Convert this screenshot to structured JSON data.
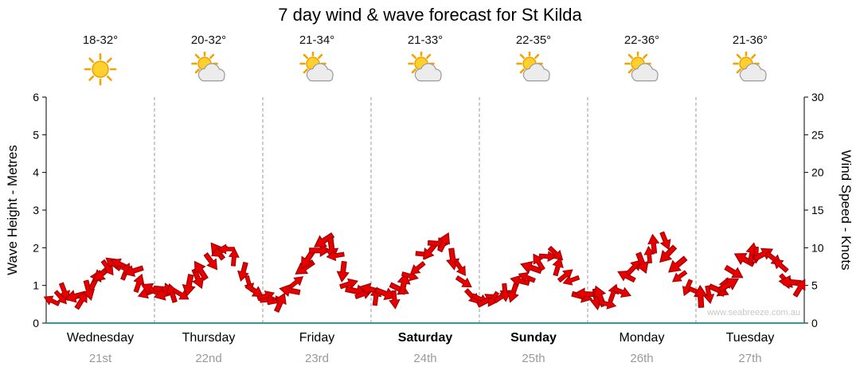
{
  "title": "7 day wind & wave forecast for St Kilda",
  "watermark": "www.seabreeze.com.au",
  "forecast": {
    "days": [
      {
        "name": "Wednesday",
        "date": "21st",
        "temp": "18-32°",
        "icon": "sun",
        "bold": false
      },
      {
        "name": "Thursday",
        "date": "22nd",
        "temp": "20-32°",
        "icon": "sun-cloud",
        "bold": false
      },
      {
        "name": "Friday",
        "date": "23rd",
        "temp": "21-34°",
        "icon": "sun-cloud",
        "bold": false
      },
      {
        "name": "Saturday",
        "date": "24th",
        "temp": "21-33°",
        "icon": "sun-cloud",
        "bold": true
      },
      {
        "name": "Sunday",
        "date": "25th",
        "temp": "22-35°",
        "icon": "sun-cloud",
        "bold": true
      },
      {
        "name": "Monday",
        "date": "26th",
        "temp": "22-36°",
        "icon": "sun-cloud",
        "bold": false
      },
      {
        "name": "Tuesday",
        "date": "27th",
        "temp": "21-36°",
        "icon": "sun-cloud",
        "bold": false
      }
    ]
  },
  "chart_data": {
    "type": "scatter",
    "title": "7 day wind & wave forecast for St Kilda",
    "marker": {
      "shape": "wind-arrow",
      "color": "#E60000",
      "outline": "#9B0000"
    },
    "x_axis": {
      "categories": [
        "Wednesday 21st",
        "Thursday 22nd",
        "Friday 23rd",
        "Saturday 24th",
        "Sunday 25th",
        "Monday 26th",
        "Tuesday 27th"
      ],
      "gridlines": "dashed-vertical-day-boundaries"
    },
    "y_left": {
      "label": "Wave Height - Metres",
      "range": [
        0,
        6
      ],
      "ticks": [
        0,
        1,
        2,
        3,
        4,
        5,
        6
      ]
    },
    "y_right": {
      "label": "Wind Speed - Knots",
      "range": [
        0,
        30
      ],
      "ticks": [
        0,
        5,
        10,
        15,
        20,
        25,
        30
      ]
    },
    "series": [
      {
        "name": "Wind Speed",
        "unit": "knots",
        "sample_interval_hours": 3,
        "values": [
          3,
          4.5,
          3.5,
          5.5,
          7.5,
          8,
          6.5,
          4.5,
          4,
          3.5,
          5,
          7,
          9.5,
          10,
          7,
          4.5,
          3.5,
          3,
          5.5,
          9,
          11,
          9,
          5,
          4,
          4,
          3.5,
          5,
          7.5,
          10,
          10.5,
          7,
          4,
          3,
          3.5,
          4.5,
          6.5,
          8.5,
          9,
          6.5,
          4,
          3.5,
          3,
          4.5,
          7,
          9.5,
          10.5,
          7.5,
          4.5,
          3.5,
          4,
          5.5,
          8,
          9.5,
          8.5,
          6,
          5
        ]
      }
    ]
  }
}
